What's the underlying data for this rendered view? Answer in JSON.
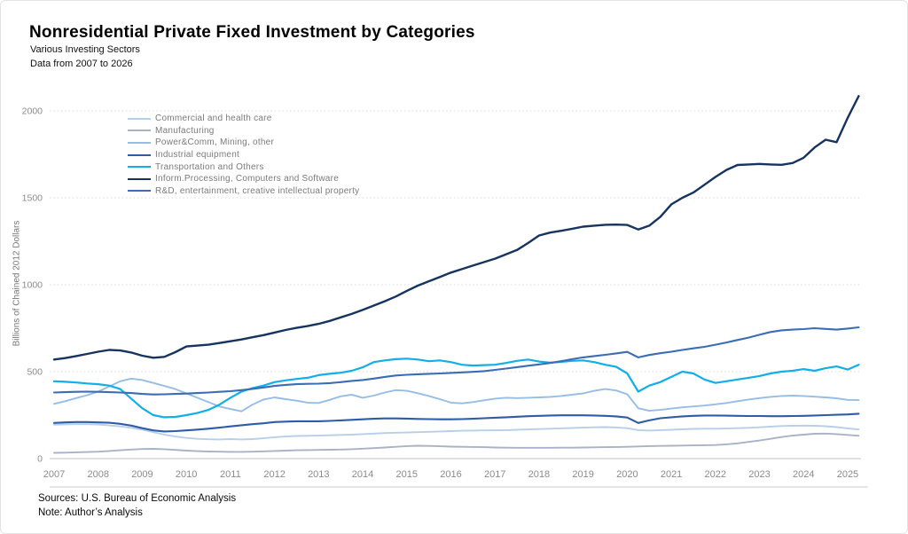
{
  "header": {
    "title": "Nonresidential Private Fixed Investment by Categories",
    "subtitle": "Various Investing Sectors",
    "range_note": "Data from 2007 to 2026"
  },
  "footer": {
    "sources": "Sources:  U.S. Bureau of Economic Analysis",
    "note": "Note: Author’s Analysis"
  },
  "chart_data": {
    "type": "line",
    "title": "Nonresidential Private Fixed Investment by Categories",
    "xlabel": "",
    "ylabel": "Billions of Chained 2012 Dollars",
    "xlim": [
      2007,
      2025.6
    ],
    "ylim": [
      0,
      2150
    ],
    "x_ticks": [
      2007,
      2008,
      2009,
      2010,
      2011,
      2012,
      2013,
      2014,
      2015,
      2016,
      2017,
      2018,
      2019,
      2020,
      2021,
      2022,
      2023,
      2024,
      2025
    ],
    "y_ticks": [
      0,
      500,
      1000,
      1500,
      2000
    ],
    "grid": "horizontal-dotted",
    "legend_position": "top-left-inside",
    "x_start": 2007,
    "x_step": 0.25,
    "axis_text_color": "#8b8b8b",
    "grid_color": "#d9d9d9",
    "zero_line_color": "#c2c2c2",
    "baseline_color": "#cccccc",
    "series": [
      {
        "name": "Commercial and health care",
        "color": "#b7cfe9",
        "width": 1.9,
        "values": [
          195,
          197,
          198,
          198,
          196,
          191,
          185,
          177,
          166,
          152,
          138,
          127,
          119,
          114,
          111,
          110,
          112,
          110,
          112,
          117,
          123,
          127,
          130,
          131,
          132,
          134,
          136,
          138,
          141,
          144,
          147,
          149,
          150,
          152,
          154,
          156,
          158,
          160,
          161,
          162,
          163,
          164,
          166,
          168,
          170,
          172,
          174,
          176,
          178,
          180,
          181,
          179,
          175,
          164,
          161,
          164,
          166,
          169,
          171,
          172,
          172,
          173,
          175,
          177,
          180,
          184,
          187,
          189,
          190,
          189,
          186,
          181,
          174,
          168
        ]
      },
      {
        "name": "Manufacturing",
        "color": "#a9b2c6",
        "width": 1.9,
        "values": [
          33,
          34,
          36,
          38,
          40,
          44,
          48,
          52,
          55,
          56,
          54,
          50,
          46,
          43,
          41,
          40,
          39,
          39,
          40,
          42,
          44,
          46,
          48,
          49,
          50,
          51,
          52,
          54,
          57,
          60,
          64,
          68,
          72,
          74,
          73,
          71,
          69,
          68,
          67,
          66,
          64,
          63,
          62,
          62,
          62,
          62,
          63,
          63,
          64,
          65,
          66,
          67,
          68,
          70,
          72,
          73,
          74,
          75,
          76,
          77,
          78,
          82,
          88,
          96,
          104,
          114,
          124,
          132,
          138,
          143,
          144,
          141,
          136,
          131
        ]
      },
      {
        "name": "Power&Comm, Mining, other",
        "color": "#97bde5",
        "width": 1.9,
        "values": [
          315,
          330,
          348,
          365,
          385,
          415,
          445,
          460,
          452,
          435,
          418,
          400,
          375,
          350,
          325,
          300,
          285,
          272,
          310,
          340,
          352,
          342,
          333,
          322,
          320,
          338,
          358,
          368,
          350,
          362,
          380,
          394,
          390,
          376,
          360,
          342,
          322,
          318,
          325,
          335,
          345,
          350,
          348,
          350,
          352,
          355,
          360,
          368,
          375,
          390,
          400,
          392,
          370,
          290,
          275,
          280,
          288,
          295,
          300,
          305,
          312,
          320,
          330,
          340,
          348,
          355,
          360,
          362,
          360,
          356,
          352,
          347,
          338,
          336
        ]
      },
      {
        "name": "Industrial equipment",
        "color": "#2e5ca6",
        "width": 2.1,
        "values": [
          205,
          208,
          210,
          210,
          208,
          206,
          200,
          190,
          175,
          162,
          156,
          158,
          162,
          167,
          172,
          178,
          185,
          192,
          198,
          203,
          210,
          213,
          215,
          215,
          215,
          217,
          220,
          223,
          226,
          229,
          231,
          231,
          230,
          228,
          227,
          226,
          226,
          227,
          229,
          232,
          235,
          238,
          241,
          244,
          246,
          248,
          249,
          249,
          249,
          248,
          246,
          243,
          236,
          205,
          220,
          232,
          238,
          243,
          246,
          248,
          248,
          247,
          246,
          245,
          245,
          244,
          244,
          245,
          246,
          248,
          250,
          252,
          254,
          258
        ]
      },
      {
        "name": "Transportation and Others",
        "color": "#12aeea",
        "width": 2.2,
        "values": [
          445,
          442,
          438,
          432,
          428,
          420,
          400,
          345,
          290,
          250,
          238,
          240,
          250,
          262,
          280,
          310,
          350,
          385,
          405,
          420,
          440,
          450,
          458,
          465,
          480,
          488,
          494,
          505,
          525,
          555,
          565,
          572,
          575,
          570,
          560,
          565,
          555,
          540,
          535,
          538,
          540,
          550,
          562,
          570,
          558,
          552,
          556,
          562,
          565,
          555,
          540,
          528,
          490,
          385,
          420,
          440,
          470,
          500,
          490,
          455,
          435,
          445,
          455,
          465,
          475,
          490,
          500,
          505,
          515,
          505,
          520,
          530,
          512,
          540
        ]
      },
      {
        "name": "Inform.Processing, Computers and Software",
        "color": "#17335f",
        "width": 2.4,
        "values": [
          570,
          578,
          590,
          602,
          615,
          625,
          622,
          610,
          592,
          580,
          585,
          612,
          645,
          650,
          655,
          665,
          675,
          685,
          698,
          710,
          725,
          740,
          752,
          762,
          775,
          792,
          812,
          832,
          855,
          880,
          905,
          932,
          965,
          995,
          1020,
          1045,
          1070,
          1090,
          1110,
          1130,
          1150,
          1175,
          1200,
          1240,
          1283,
          1300,
          1310,
          1322,
          1334,
          1340,
          1345,
          1346,
          1344,
          1318,
          1340,
          1390,
          1462,
          1500,
          1530,
          1575,
          1620,
          1660,
          1689,
          1692,
          1695,
          1692,
          1690,
          1700,
          1730,
          1790,
          1834,
          1820,
          1960,
          2085
        ]
      },
      {
        "name": "R&D, entertainment, creative intellectual property",
        "color": "#3b6cb4",
        "width": 2.1,
        "values": [
          380,
          382,
          384,
          385,
          384,
          382,
          380,
          377,
          372,
          369,
          370,
          372,
          374,
          377,
          380,
          384,
          388,
          394,
          401,
          409,
          418,
          424,
          428,
          430,
          431,
          434,
          440,
          447,
          452,
          460,
          470,
          478,
          482,
          485,
          488,
          490,
          493,
          496,
          499,
          503,
          510,
          518,
          526,
          534,
          542,
          550,
          560,
          572,
          582,
          590,
          597,
          605,
          614,
          582,
          596,
          606,
          615,
          625,
          634,
          643,
          655,
          668,
          682,
          696,
          712,
          728,
          738,
          742,
          745,
          750,
          746,
          742,
          748,
          755
        ]
      }
    ]
  }
}
